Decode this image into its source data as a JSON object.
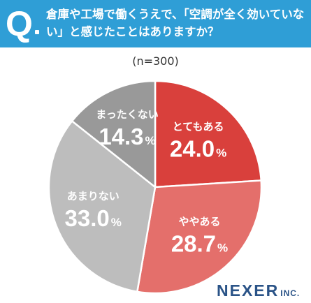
{
  "header": {
    "q_letter": "Q",
    "question": "倉庫や工場で働くうえで、「空調が全く効いていない」と感じたことはありますか？",
    "bg_color": "#2f9ed6"
  },
  "sample_note": "(n=300)",
  "brand": {
    "name": "NEXER",
    "suffix": "INC.",
    "color": "#2a5387"
  },
  "chart_data": {
    "type": "pie",
    "start": "12 o'clock",
    "direction": "clockwise",
    "categories": [
      "とてもある",
      "ややある",
      "あまりない",
      "まったくない"
    ],
    "values": [
      24.0,
      28.7,
      33.0,
      14.3
    ],
    "value_labels": [
      "24.0",
      "28.7",
      "33.0",
      "14.3"
    ],
    "unit": "%",
    "colors": [
      "#d9403c",
      "#e46f6b",
      "#bdbdbd",
      "#999999"
    ]
  }
}
